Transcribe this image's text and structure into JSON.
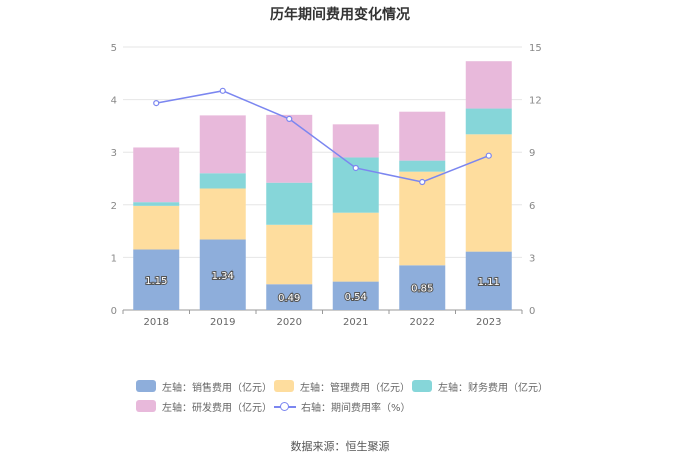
{
  "title": "历年期间费用变化情况",
  "source": "数据来源：恒生聚源",
  "chart_data": {
    "type": "bar",
    "stacked": true,
    "title": "历年期间费用变化情况",
    "categories": [
      "2018",
      "2019",
      "2020",
      "2021",
      "2022",
      "2023"
    ],
    "ylim_left": [
      0,
      5
    ],
    "yticks_left": [
      0,
      1,
      2,
      3,
      4,
      5
    ],
    "ylim_right": [
      0,
      15
    ],
    "yticks_right": [
      0,
      3,
      6,
      9,
      12,
      15
    ],
    "grid": true,
    "legend_position": "bottom",
    "series": [
      {
        "name": "左轴：销售费用（亿元）",
        "axis": "left",
        "type": "bar",
        "color": "#8eaedb",
        "values": [
          1.15,
          1.34,
          0.49,
          0.54,
          0.85,
          1.11
        ],
        "labels": [
          "1.15",
          "1.34",
          "0.49",
          "0.54",
          "0.85",
          "1.11"
        ]
      },
      {
        "name": "左轴：管理费用（亿元）",
        "axis": "left",
        "type": "bar",
        "color": "#fedd9e",
        "values": [
          0.83,
          0.97,
          1.13,
          1.31,
          1.78,
          2.23
        ]
      },
      {
        "name": "左轴：财务费用（亿元）",
        "axis": "left",
        "type": "bar",
        "color": "#86d6d9",
        "values": [
          0.07,
          0.29,
          0.8,
          1.05,
          0.21,
          0.49
        ]
      },
      {
        "name": "左轴：研发费用（亿元）",
        "axis": "left",
        "type": "bar",
        "color": "#e8b9db",
        "values": [
          1.04,
          1.1,
          1.29,
          0.63,
          0.93,
          0.9
        ]
      },
      {
        "name": "右轴：期间费用率（%）",
        "axis": "right",
        "type": "line",
        "color": "#7b86f0",
        "values": [
          11.8,
          12.5,
          10.9,
          8.1,
          7.3,
          8.8
        ]
      }
    ]
  }
}
